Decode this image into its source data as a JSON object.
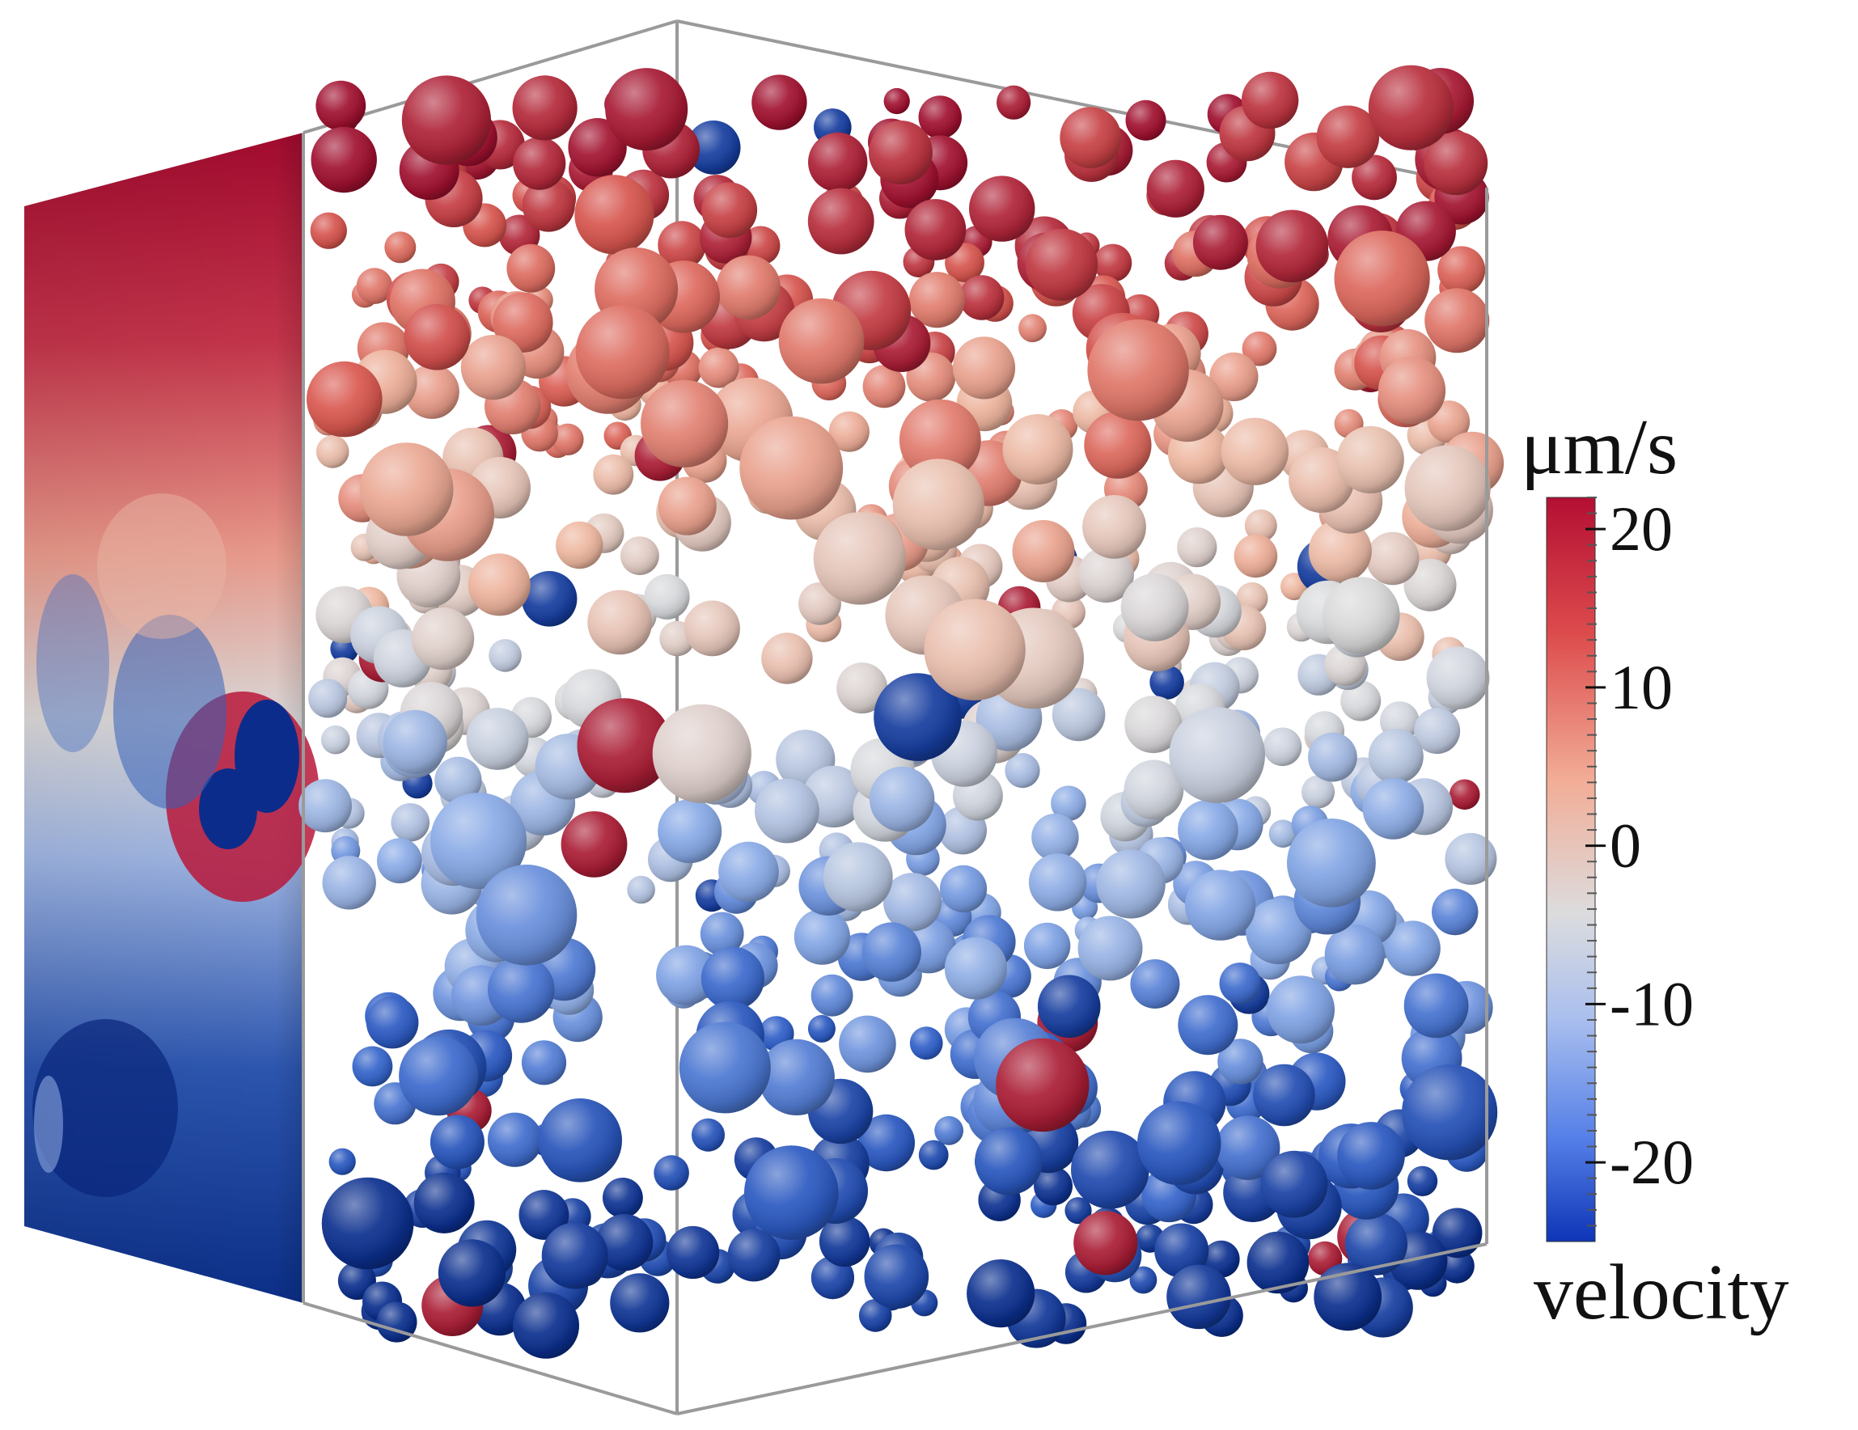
{
  "colorbar": {
    "unit_label": "μm/s",
    "field_label": "velocity",
    "ticks": [
      {
        "value": 20,
        "label": "20"
      },
      {
        "value": 10,
        "label": "10"
      },
      {
        "value": 0,
        "label": "0"
      },
      {
        "value": -10,
        "label": "-10"
      },
      {
        "value": -20,
        "label": "-20"
      }
    ],
    "range": [
      -25,
      22
    ],
    "colormap": [
      "#0b2f8e",
      "#2f5fc8",
      "#86a8e6",
      "#d8d9dc",
      "#eeb7a0",
      "#d9584f",
      "#a0102f"
    ]
  }
}
